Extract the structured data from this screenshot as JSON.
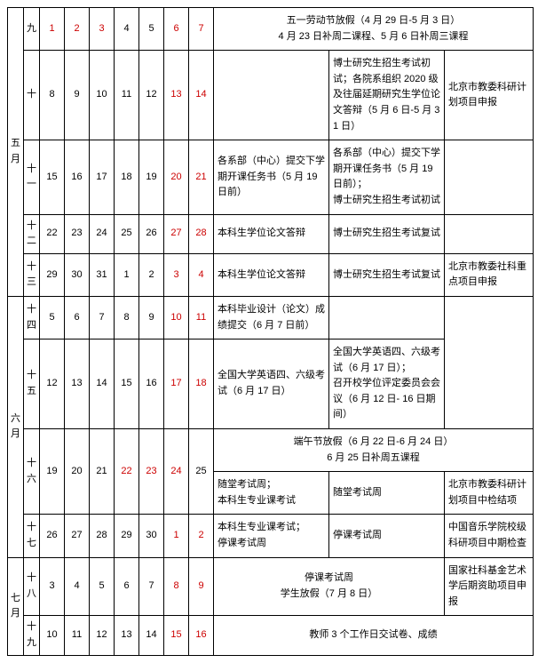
{
  "months": {
    "may": "五月",
    "jun": "六月",
    "jul": "七月"
  },
  "weeks": {
    "w9": "九",
    "w10": "十",
    "w11": "十一",
    "w12": "十二",
    "w13": "十三",
    "w14": "十四",
    "w15": "十五",
    "w16": "十六",
    "w17": "十七",
    "w18": "十八",
    "w19": "十九"
  },
  "days": {
    "r9": [
      "1",
      "2",
      "3",
      "4",
      "5",
      "6",
      "7"
    ],
    "r10": [
      "8",
      "9",
      "10",
      "11",
      "12",
      "13",
      "14"
    ],
    "r11": [
      "15",
      "16",
      "17",
      "18",
      "19",
      "20",
      "21"
    ],
    "r12": [
      "22",
      "23",
      "24",
      "25",
      "26",
      "27",
      "28"
    ],
    "r13": [
      "29",
      "30",
      "31",
      "1",
      "2",
      "3",
      "4"
    ],
    "r14": [
      "5",
      "6",
      "7",
      "8",
      "9",
      "10",
      "11"
    ],
    "r15": [
      "12",
      "13",
      "14",
      "15",
      "16",
      "17",
      "18"
    ],
    "r16": [
      "19",
      "20",
      "21",
      "22",
      "23",
      "24",
      "25"
    ],
    "r17": [
      "26",
      "27",
      "28",
      "29",
      "30",
      "1",
      "2"
    ],
    "r18": [
      "3",
      "4",
      "5",
      "6",
      "7",
      "8",
      "9"
    ],
    "r19": [
      "10",
      "11",
      "12",
      "13",
      "14",
      "15",
      "16"
    ]
  },
  "red": {
    "r9": [
      0,
      1,
      2,
      5,
      6
    ],
    "r10": [
      5,
      6
    ],
    "r11": [
      5,
      6
    ],
    "r12": [
      5,
      6
    ],
    "r13": [
      5,
      6
    ],
    "r14": [
      5,
      6
    ],
    "r15": [
      5,
      6
    ],
    "r16": [
      3,
      4,
      5
    ],
    "r17": [
      5,
      6
    ],
    "r18": [
      5,
      6
    ],
    "r19": [
      5,
      6
    ]
  },
  "ev": {
    "r9a": "五一劳动节放假（4 月 29 日-5 月 3 日）\n4 月 23 日补周二课程、5 月 6 日补周三课程",
    "r10b": "博士研究生招生考试初试；各院系组织 2020 级及往届延期研究生学位论文答辩（5 月 6 日-5 月 31 日）",
    "r10c": "北京市教委科研计划项目申报",
    "r11a": "各系部（中心）提交下学期开课任务书（5 月 19 日前）",
    "r11b": "各系部（中心）提交下学期开课任务书（5 月 19 日前）；\n博士研究生招生考试初试",
    "r12a": "本科生学位论文答辩",
    "r12b": "博士研究生招生考试复试",
    "r13a": "本科生学位论文答辩",
    "r13b": "博士研究生招生考试复试",
    "r13c": "北京市教委社科重点项目申报",
    "r14a": "本科毕业设计（论文）成绩提交（6 月 7 日前）",
    "r15a": "全国大学英语四、六级考试（6 月 17 日）",
    "r15b": "全国大学英语四、六级考试（6 月 17 日）；\n召开校学位评定委员会会议（6 月 12 日- 16 日期间）",
    "r16top": "端午节放假（6 月 22 日-6 月 24 日）\n6 月 25 日补周五课程",
    "r16a": "随堂考试周；\n本科生专业课考试",
    "r16b": "随堂考试周",
    "r16c": "北京市教委科研计划项目中检结项",
    "r17a": "本科生专业课考试；\n停课考试周",
    "r17b": "停课考试周",
    "r17c": "中国音乐学院校级科研项目中期检查",
    "r18a": "停课考试周\n学生放假（7 月 8 日）",
    "r18c": "国家社科基金艺术学后期资助项目申报",
    "r19a": "教师 3 个工作日交试卷、成绩"
  }
}
